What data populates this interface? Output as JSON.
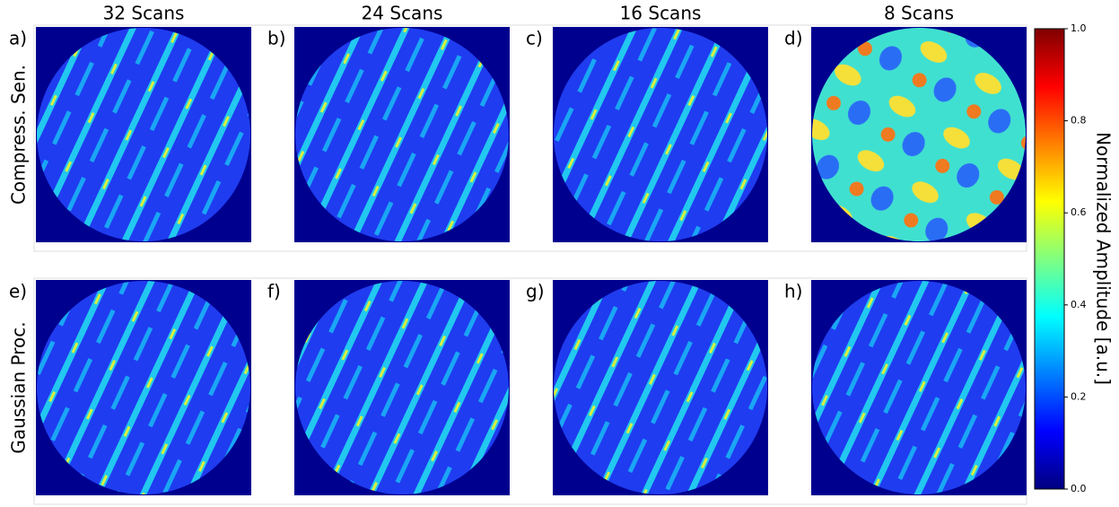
{
  "column_titles": [
    "32 Scans",
    "24 Scans",
    "16 Scans",
    "8 Scans"
  ],
  "row_labels": [
    "Compress. Sen.",
    "Gaussian Proc."
  ],
  "panel_labels": [
    "a)",
    "b)",
    "c)",
    "d)",
    "e)",
    "f)",
    "g)",
    "h)"
  ],
  "colorbar": {
    "label": "Normalized Amplitude [a.u.]",
    "lim": [
      0,
      1
    ],
    "ticks": [
      {
        "value": 0,
        "label": "0.0"
      },
      0.2,
      0.4,
      0.6,
      0.8,
      {
        "value": 1,
        "label": "1.0"
      }
    ]
  }
}
